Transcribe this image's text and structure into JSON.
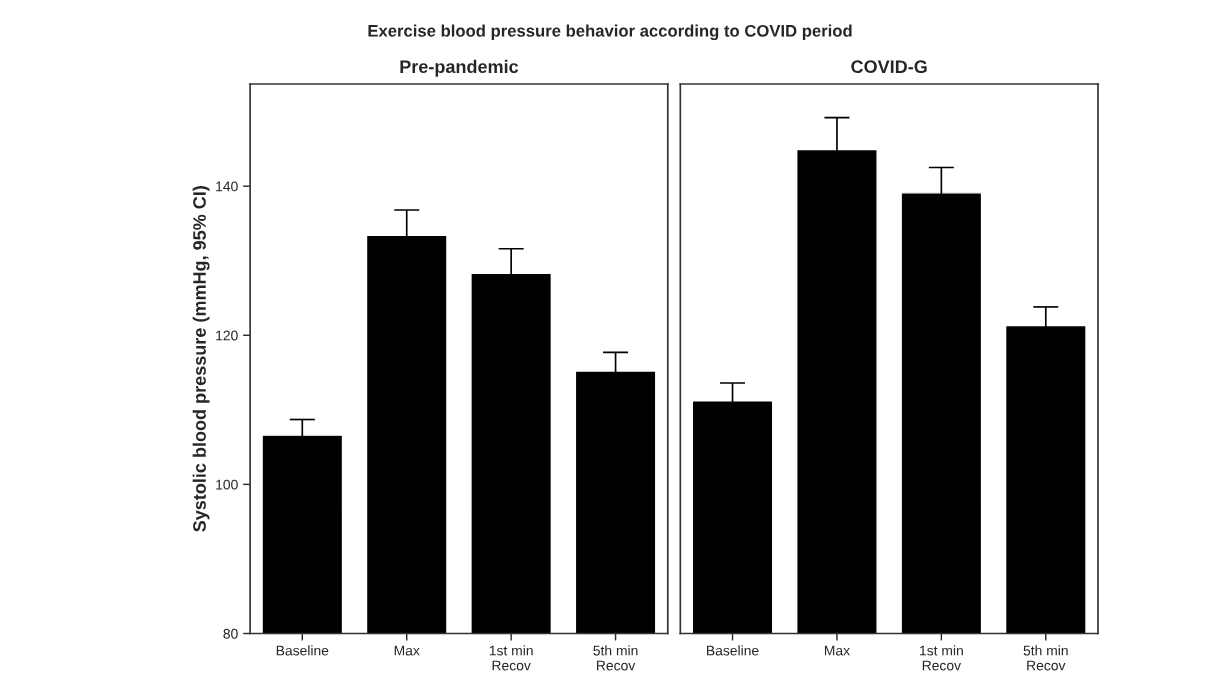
{
  "chart_data": [
    {
      "type": "bar",
      "title": "Exercise blood pressure behavior according to COVID period",
      "subtitle": "Pre-pandemic",
      "ylabel": "Systolic blood pressure (mmHg, 95% CI)",
      "categories": [
        "Baseline",
        "Max",
        "1st min\nRecov",
        "5th min\nRecov"
      ],
      "values": [
        106.6,
        133.4,
        128.3,
        115.2
      ],
      "errors": [
        2.1,
        3.4,
        3.3,
        2.5
      ],
      "color": "#000000",
      "ylim": [
        80,
        153.7
      ],
      "yticks": [
        80,
        100,
        120,
        140
      ],
      "grid": false,
      "legend": false
    },
    {
      "type": "bar",
      "subtitle": "COVID-G",
      "categories": [
        "Baseline",
        "Max",
        "1st min\nRecov",
        "5th min\nRecov"
      ],
      "values": [
        111.2,
        144.9,
        139.1,
        121.3
      ],
      "errors": [
        2.4,
        4.3,
        3.4,
        2.5
      ],
      "color": "#000000",
      "ylim": [
        80,
        153.7
      ],
      "yticks": [
        80,
        100,
        120,
        140
      ],
      "tick_labels": "x",
      "grid": false,
      "legend": false
    }
  ]
}
